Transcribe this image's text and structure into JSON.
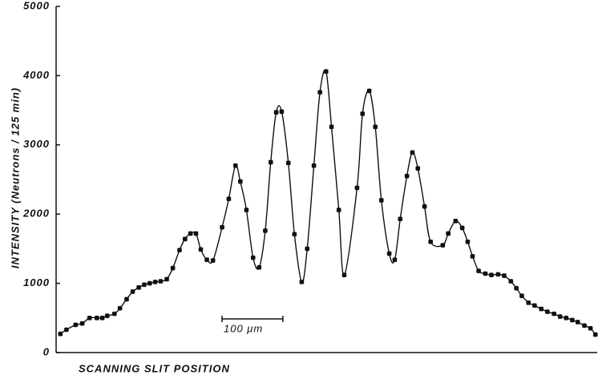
{
  "chart_data": {
    "type": "scatter",
    "y_label": "INTENSITY (Neutrons / 125 min)",
    "x_label": "SCANNING SLIT POSITION",
    "scale_bar": {
      "value": 100,
      "label": "100 μm"
    },
    "x": [
      7,
      17,
      32,
      43,
      55,
      67,
      76,
      84,
      96,
      105,
      116,
      126,
      136,
      145,
      154,
      163,
      172,
      182,
      192,
      203,
      212,
      221,
      230,
      238,
      248,
      258,
      273,
      284,
      295,
      303,
      313,
      324,
      334,
      344,
      353,
      362,
      371,
      382,
      392,
      404,
      413,
      424,
      434,
      444,
      453,
      465,
      474,
      495,
      504,
      515,
      525,
      535,
      548,
      557,
      566,
      577,
      586,
      595,
      606,
      616,
      636,
      645,
      657,
      668,
      677,
      685,
      695,
      706,
      716,
      727,
      737,
      748,
      757,
      766,
      777,
      787,
      798,
      808,
      819,
      829,
      839,
      849,
      858,
      869,
      879,
      887
    ],
    "values": [
      270,
      330,
      400,
      420,
      500,
      500,
      500,
      530,
      560,
      640,
      770,
      880,
      940,
      980,
      1000,
      1020,
      1030,
      1060,
      1220,
      1480,
      1640,
      1720,
      1720,
      1490,
      1340,
      1330,
      1810,
      2220,
      2700,
      2470,
      2060,
      1370,
      1230,
      1760,
      2750,
      3470,
      3480,
      2740,
      1710,
      1020,
      1500,
      2700,
      3760,
      4060,
      3260,
      2060,
      1120,
      2380,
      3450,
      3780,
      3260,
      2200,
      1430,
      1340,
      1930,
      2550,
      2890,
      2660,
      2110,
      1600,
      1550,
      1720,
      1900,
      1800,
      1600,
      1390,
      1180,
      1140,
      1120,
      1130,
      1110,
      1030,
      930,
      820,
      720,
      680,
      630,
      590,
      560,
      520,
      500,
      470,
      440,
      390,
      350,
      260
    ],
    "color": "#111111",
    "xlim": [
      0,
      890
    ],
    "ylim": [
      0,
      5000
    ],
    "yticks": [
      0,
      1000,
      2000,
      3000,
      4000,
      5000
    ]
  }
}
